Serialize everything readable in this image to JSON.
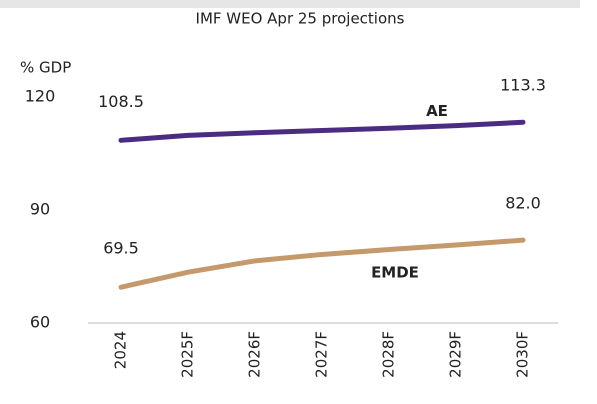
{
  "chart_data": {
    "type": "line",
    "title": "IMF WEO Apr 25 projections",
    "ylabel": "% GDP",
    "categories": [
      "2024",
      "2025F",
      "2026F",
      "2027F",
      "2028F",
      "2029F",
      "2030F"
    ],
    "series": [
      {
        "name": "AE",
        "color": "#4b2c83",
        "values": [
          108.5,
          109.8,
          110.5,
          111.1,
          111.7,
          112.4,
          113.3
        ],
        "value_labels": [
          "108.5",
          null,
          null,
          null,
          null,
          null,
          "113.3"
        ]
      },
      {
        "name": "EMDE",
        "color": "#c49a6c",
        "values": [
          69.5,
          73.5,
          76.5,
          78.2,
          79.5,
          80.7,
          82.0
        ],
        "value_labels": [
          "69.5",
          null,
          null,
          null,
          null,
          null,
          "82.0"
        ]
      }
    ],
    "ylim": [
      60,
      120
    ],
    "yticks": [
      60,
      90,
      120
    ],
    "grid": false
  }
}
